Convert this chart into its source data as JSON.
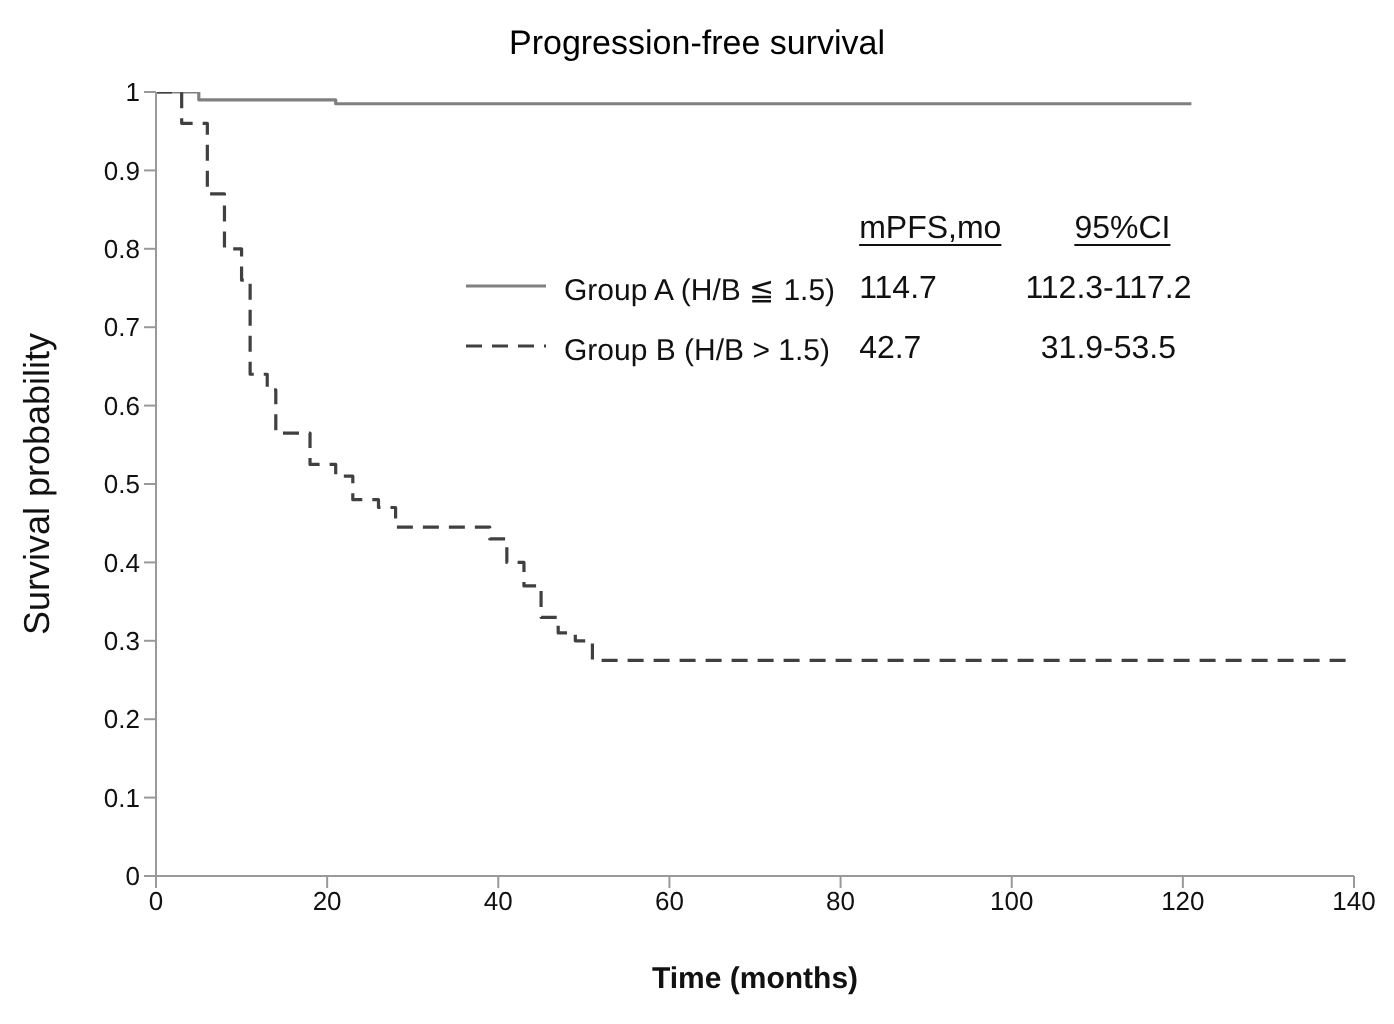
{
  "chart_data": {
    "type": "step",
    "title": "Progression-free survival",
    "xlabel": "Time (months)",
    "ylabel": "Survival probability",
    "xlim": [
      0,
      140
    ],
    "xticks": [
      0,
      20,
      40,
      60,
      80,
      100,
      120,
      140
    ],
    "ylim": [
      0,
      1
    ],
    "yticks": [
      0,
      0.1,
      0.2,
      0.3,
      0.4,
      0.5,
      0.6,
      0.7,
      0.8,
      0.9,
      1
    ],
    "legend": "top",
    "marker": "none",
    "series": [
      {
        "name": "Group A (H/B ≦ 1.5)",
        "color": "#808080",
        "line_style": "solid",
        "x": [
          0,
          5,
          21,
          121
        ],
        "values": [
          1,
          0.99,
          0.985,
          0.985
        ]
      },
      {
        "name": "Group B (H/B > 1.5)",
        "color": "#404040",
        "line_style": "dashed",
        "x": [
          0,
          3,
          6,
          8,
          10,
          11,
          13,
          14,
          18,
          21,
          23,
          26,
          28,
          39,
          41,
          43,
          45,
          47,
          49,
          51,
          140
        ],
        "values": [
          1,
          0.96,
          0.87,
          0.8,
          0.76,
          0.64,
          0.62,
          0.565,
          0.525,
          0.51,
          0.48,
          0.47,
          0.445,
          0.43,
          0.4,
          0.37,
          0.33,
          0.31,
          0.3,
          0.275,
          0.275
        ]
      }
    ],
    "annotations": [
      "mPFS,mo",
      "95%CI",
      "114.7",
      "112.3-117.2",
      "42.7",
      "31.9-53.5"
    ]
  }
}
